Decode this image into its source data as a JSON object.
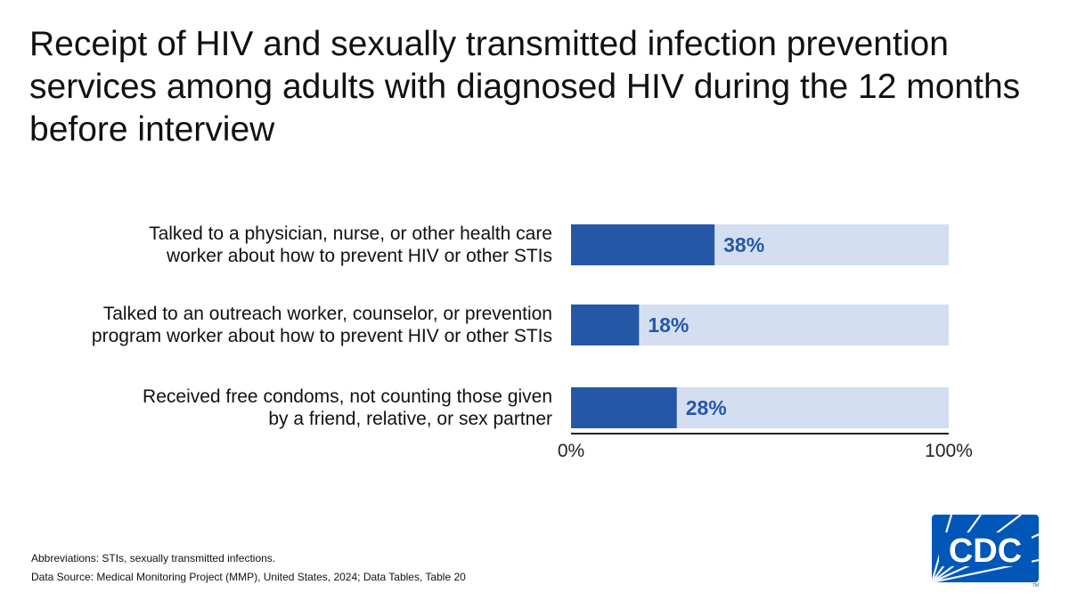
{
  "title": "Receipt of HIV and sexually transmitted infection prevention services among adults with diagnosed HIV during the 12 months before interview",
  "chart_data": {
    "type": "bar",
    "orientation": "horizontal",
    "categories": [
      "Talked to a physician, nurse, or other health care worker about how to prevent HIV or other STIs",
      "Talked to an outreach worker, counselor, or prevention program worker about how to prevent HIV or other STIs",
      "Received free condoms, not counting those given by a friend, relative, or sex partner"
    ],
    "category_lines": [
      [
        "Talked to a physician, nurse, or other health care",
        "worker about how to prevent HIV or other STIs"
      ],
      [
        "Talked to an outreach worker, counselor, or prevention",
        "program worker about how to prevent HIV or other STIs"
      ],
      [
        "Received free condoms, not counting those given",
        "by a friend, relative, or sex partner"
      ]
    ],
    "values": [
      38,
      18,
      28
    ],
    "value_labels": [
      "38%",
      "18%",
      "28%"
    ],
    "xlim": [
      0,
      100
    ],
    "x_ticks": [
      "0%",
      "100%"
    ],
    "colors": {
      "bar": "#2557a7",
      "background_bar": "#d3dff0",
      "label": "#2557a7",
      "axis": "#222222"
    },
    "grid": false
  },
  "footnotes": {
    "abbreviations": "Abbreviations: STIs, sexually transmitted infections.",
    "source": "Data Source: Medical Monitoring Project (MMP), United States, 2024; Data Tables, Table 20"
  },
  "logo": {
    "text": "CDC",
    "color": "#0057b8"
  }
}
